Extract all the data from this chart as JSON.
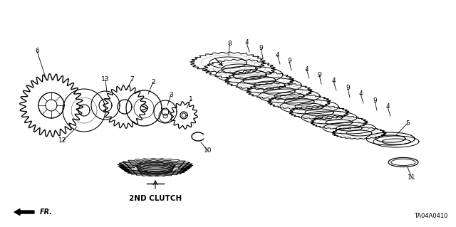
{
  "background_color": "#ffffff",
  "diagram_code": "TA04A0410",
  "label_2nd_clutch": "2ND CLUTCH",
  "label_fr": "FR.",
  "line_color": "#000000",
  "text_color": "#000000"
}
